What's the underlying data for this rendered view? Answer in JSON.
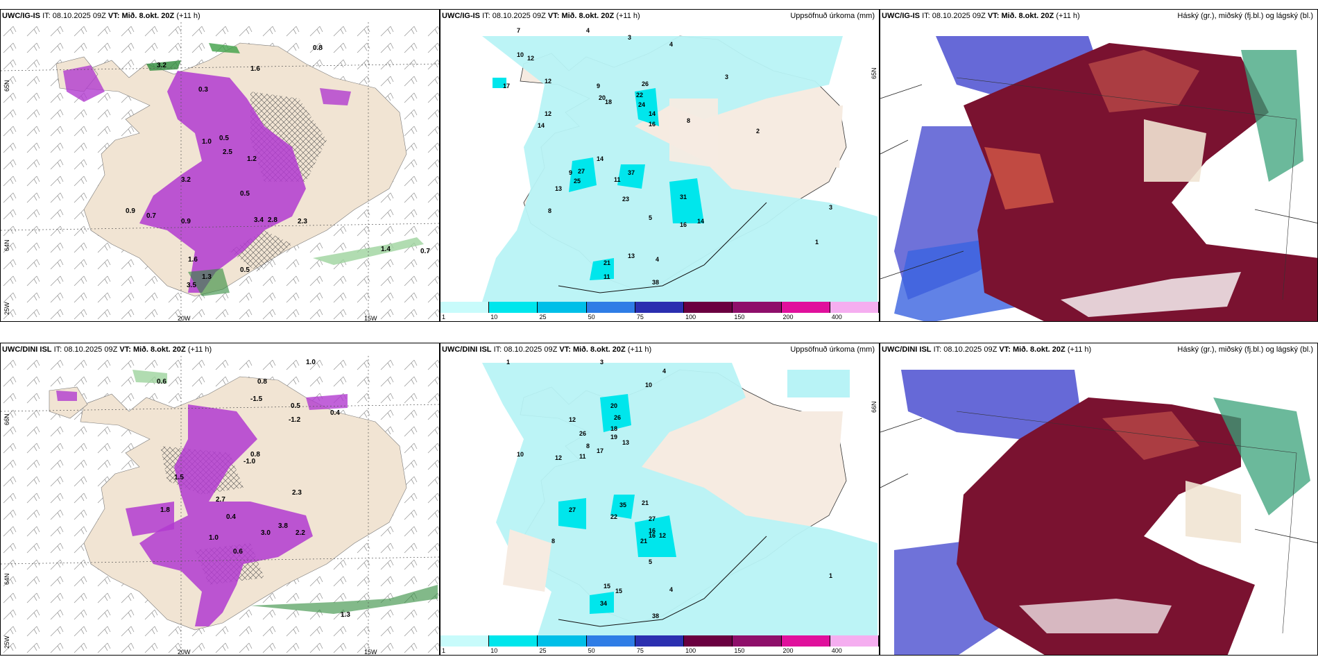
{
  "rows": [
    {
      "model": "UWC/IG-IS",
      "it_label": "IT:",
      "it_value": "08.10.2025 09Z",
      "vt_label": "VT:",
      "vt_value": "Mið. 8.okt. 20Z",
      "lead": "(+11 h)",
      "panel1": {
        "lat_labels": [
          "65N",
          "64N",
          "25W"
        ],
        "lon_labels": [
          "20W",
          "15W"
        ],
        "values": [
          "0.8",
          "3.2",
          "1.6",
          "0.3",
          "0.5",
          "0.9",
          "0.7",
          "2.3",
          "2.8",
          "3.4",
          "1.0",
          "2.5",
          "1.2",
          "3.2",
          "0.5",
          "1.4",
          "0.7",
          "0.9",
          "1.6",
          "3.5",
          "1.3",
          "0.5"
        ]
      },
      "panel2": {
        "title": "Uppsöfnuð úrkoma (mm)",
        "lat_label": "65N",
        "values": [
          "7",
          "4",
          "3",
          "4",
          "10",
          "12",
          "17",
          "12",
          "12",
          "14",
          "9",
          "20",
          "18",
          "26",
          "22",
          "24",
          "14",
          "16",
          "8",
          "3",
          "2",
          "3",
          "9",
          "14",
          "27",
          "25",
          "13",
          "37",
          "11",
          "23",
          "31",
          "16",
          "14",
          "21",
          "11",
          "13",
          "38",
          "8",
          "5",
          "4",
          "1"
        ]
      },
      "panel3": {
        "title": "Háský (gr.), miðský (fj.bl.) og lágský (bl.)"
      }
    },
    {
      "model": "UWC/DINI ISL",
      "it_label": "IT:",
      "it_value": "08.10.2025 09Z",
      "vt_label": "VT:",
      "vt_value": "Mið. 8.okt. 20Z",
      "lead": "(+11 h)",
      "panel1": {
        "lat_labels": [
          "66N",
          "64N",
          "25W"
        ],
        "lon_labels": [
          "20W",
          "15W"
        ],
        "values": [
          "1.0",
          "0.6",
          "0.8",
          "-1.5",
          "-1.2",
          "0.5",
          "0.4",
          "2.3",
          "1.8",
          "3.0",
          "3.8",
          "2.2",
          "1.0",
          "0.4",
          "2.7",
          "0.6",
          "1.3",
          "-1.0",
          "1.5",
          "0.8"
        ]
      },
      "panel2": {
        "title": "Uppsöfnuð úrkoma (mm)",
        "lat_label": "66N",
        "values": [
          "1",
          "3",
          "4",
          "10",
          "10",
          "12",
          "26",
          "20",
          "26",
          "18",
          "19",
          "13",
          "8",
          "17",
          "11",
          "12",
          "27",
          "35",
          "21",
          "27",
          "12",
          "22",
          "16",
          "15",
          "21",
          "16",
          "15",
          "34",
          "38",
          "8",
          "5",
          "4",
          "1"
        ]
      },
      "panel3": {
        "title": "Háský (gr.), miðský (fj.bl.) og lágský (bl.)"
      }
    }
  ],
  "colorbar": {
    "ticks": [
      "1",
      "10",
      "25",
      "50",
      "75",
      "100",
      "150",
      "200",
      "400"
    ],
    "colors": [
      "#c8fbfb",
      "#00e6ec",
      "#00bfe8",
      "#2f7de6",
      "#2b2fb0",
      "#6a0040",
      "#8e0f6a",
      "#e0109c",
      "#f5aef0"
    ]
  },
  "colors": {
    "land": "#f1e4d3",
    "precip_light": "#b8f3f6",
    "purple": "#b23bd0",
    "green": "#2e8b3b",
    "maroon": "#7a1230",
    "blue_cloud": "#4b4fd0"
  }
}
